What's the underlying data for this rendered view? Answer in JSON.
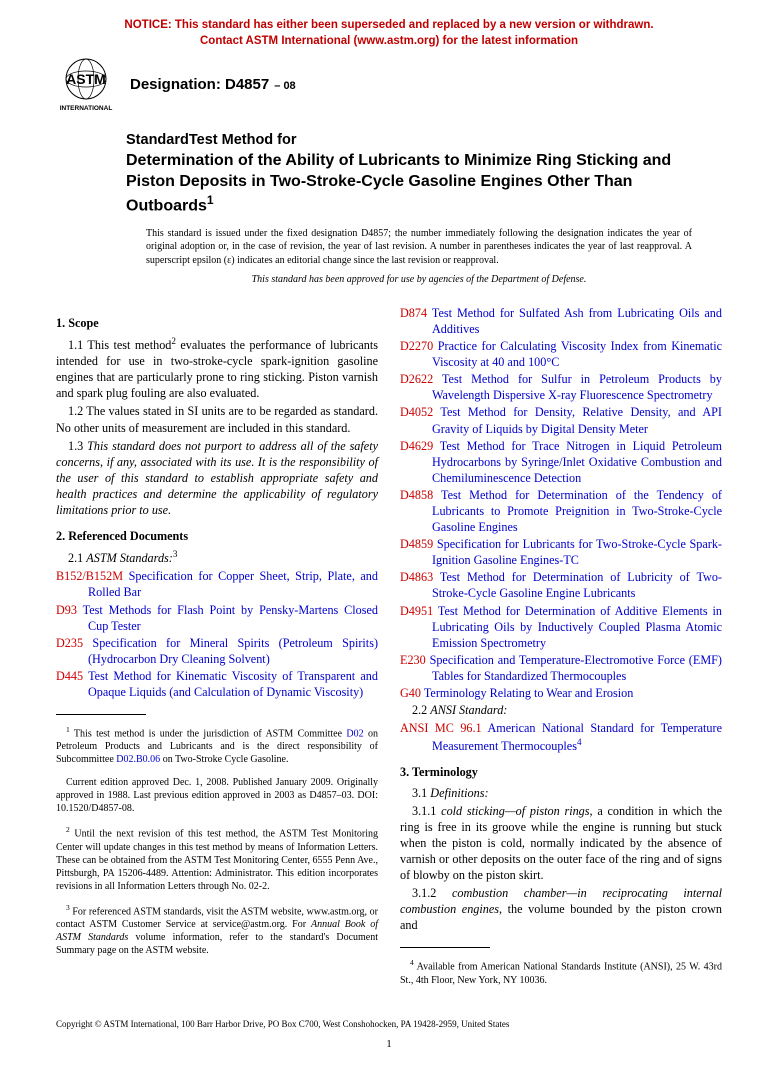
{
  "notice": {
    "line1": "NOTICE: This standard has either been superseded and replaced by a new version or withdrawn.",
    "line2": "Contact ASTM International (www.astm.org) for the latest information"
  },
  "header": {
    "logo_text_top": "ASTM",
    "logo_text_bottom": "INTERNATIONAL",
    "designation_label": "Designation: D4857",
    "designation_suffix": "– 08"
  },
  "title": {
    "line1": "StandardTest Method for",
    "main": "Determination of the Ability of Lubricants to Minimize Ring Sticking and Piston Deposits in Two-Stroke-Cycle Gasoline Engines Other Than Outboards",
    "sup": "1"
  },
  "issuance": {
    "para": "This standard is issued under the fixed designation D4857; the number immediately following the designation indicates the year of original adoption or, in the case of revision, the year of last revision. A number in parentheses indicates the year of last reapproval. A superscript epsilon (ε) indicates an editorial change since the last revision or reapproval.",
    "italic": "This standard has been approved for use by agencies of the Department of Defense."
  },
  "sections": {
    "scope_head": "1. Scope",
    "scope_p1_a": "1.1 This test method",
    "scope_p1_sup": "2",
    "scope_p1_b": " evaluates the performance of lubricants intended for use in two-stroke-cycle spark-ignition gasoline engines that are particularly prone to ring sticking. Piston varnish and spark plug fouling are also evaluated.",
    "scope_p2": "1.2 The values stated in SI units are to be regarded as standard. No other units of measurement are included in this standard.",
    "scope_p3": "1.3 This standard does not purport to address all of the safety concerns, if any, associated with its use. It is the responsibility of the user of this standard to establish appropriate safety and health practices and determine the applicability of regulatory limitations prior to use.",
    "ref_head": "2. Referenced Documents",
    "ref_sub1_a": "2.1 ",
    "ref_sub1_b": "ASTM Standards:",
    "ref_sub1_sup": "3",
    "ref_sub2": "2.2 ANSI Standard:",
    "term_head": "3. Terminology",
    "term_sub": "3.1 Definitions:",
    "term_p1": "3.1.1 cold sticking—of piston rings, a condition in which the ring is free in its groove while the engine is running but stuck when the piston is cold, normally indicated by the absence of varnish or other deposits on the outer face of the ring and of signs of blowby on the piston skirt.",
    "term_p2": "3.1.2 combustion chamber—in reciprocating internal combustion engines, the volume bounded by the piston crown and"
  },
  "refs_col1": [
    {
      "code": "B152/B152M",
      "text": " Specification for Copper Sheet, Strip, Plate, and Rolled Bar"
    },
    {
      "code": "D93",
      "text": " Test Methods for Flash Point by Pensky-Martens Closed Cup Tester"
    },
    {
      "code": "D235",
      "text": " Specification for Mineral Spirits (Petroleum Spirits) (Hydrocarbon Dry Cleaning Solvent)"
    },
    {
      "code": "D445",
      "text": " Test Method for Kinematic Viscosity of Transparent and Opaque Liquids (and Calculation of Dynamic Viscosity)"
    }
  ],
  "refs_col2": [
    {
      "code": "D874",
      "text": " Test Method for Sulfated Ash from Lubricating Oils and Additives"
    },
    {
      "code": "D2270",
      "text": " Practice for Calculating Viscosity Index from Kinematic Viscosity at 40 and 100°C"
    },
    {
      "code": "D2622",
      "text": " Test Method for Sulfur in Petroleum Products by Wavelength Dispersive X-ray Fluorescence Spectrometry"
    },
    {
      "code": "D4052",
      "text": " Test Method for Density, Relative Density, and API Gravity of Liquids by Digital Density Meter"
    },
    {
      "code": "D4629",
      "text": " Test Method for Trace Nitrogen in Liquid Petroleum Hydrocarbons by Syringe/Inlet Oxidative Combustion and Chemiluminescence Detection"
    },
    {
      "code": "D4858",
      "text": " Test Method for Determination of the Tendency of Lubricants to Promote Preignition in Two-Stroke-Cycle Gasoline Engines"
    },
    {
      "code": "D4859",
      "text": " Specification for Lubricants for Two-Stroke-Cycle Spark-Ignition Gasoline Engines-TC"
    },
    {
      "code": "D4863",
      "text": " Test Method for Determination of Lubricity of Two-Stroke-Cycle Gasoline Engine Lubricants"
    },
    {
      "code": "D4951",
      "text": " Test Method for Determination of Additive Elements in Lubricating Oils by Inductively Coupled Plasma Atomic Emission Spectrometry"
    },
    {
      "code": "E230",
      "text": " Specification and Temperature-Electromotive Force (EMF) Tables for Standardized Thermocouples"
    },
    {
      "code": "G40",
      "text": " Terminology Relating to Wear and Erosion"
    }
  ],
  "ansi_ref": {
    "code": "ANSI MC 96.1",
    "text": " American National Standard for Temperature Measurement Thermocouples",
    "sup": "4"
  },
  "footnotes": {
    "f1_a": "1",
    "f1_b": " This test method is under the jurisdiction of ASTM Committee ",
    "f1_link1": "D02",
    "f1_c": " on Petroleum Products and Lubricants and is the direct responsibility of Subcommittee ",
    "f1_link2": "D02.B0.06",
    "f1_d": " on Two-Stroke Cycle Gasoline.",
    "f1e": "Current edition approved Dec. 1, 2008. Published January 2009. Originally approved in 1988. Last previous edition approved in 2003 as D4857–03. DOI: 10.1520/D4857-08.",
    "f2": "2 Until the next revision of this test method, the ASTM Test Monitoring Center will update changes in this test method by means of Information Letters. These can be obtained from the ASTM Test Monitoring Center, 6555 Penn Ave., Pittsburgh, PA 15206-4489. Attention: Administrator. This edition incorporates revisions in all Information Letters through No. 02-2.",
    "f3": "3 For referenced ASTM standards, visit the ASTM website, www.astm.org, or contact ASTM Customer Service at service@astm.org. For Annual Book of ASTM Standards volume information, refer to the standard's Document Summary page on the ASTM website.",
    "f4": "4 Available from American National Standards Institute (ANSI), 25 W. 43rd St., 4th Floor, New York, NY 10036."
  },
  "copyright": "Copyright © ASTM International, 100 Barr Harbor Drive, PO Box C700, West Conshohocken, PA 19428-2959, United States",
  "page_number": "1",
  "colors": {
    "notice": "#c00000",
    "link_blue": "#0000cc",
    "ref_red": "#cc0000"
  }
}
